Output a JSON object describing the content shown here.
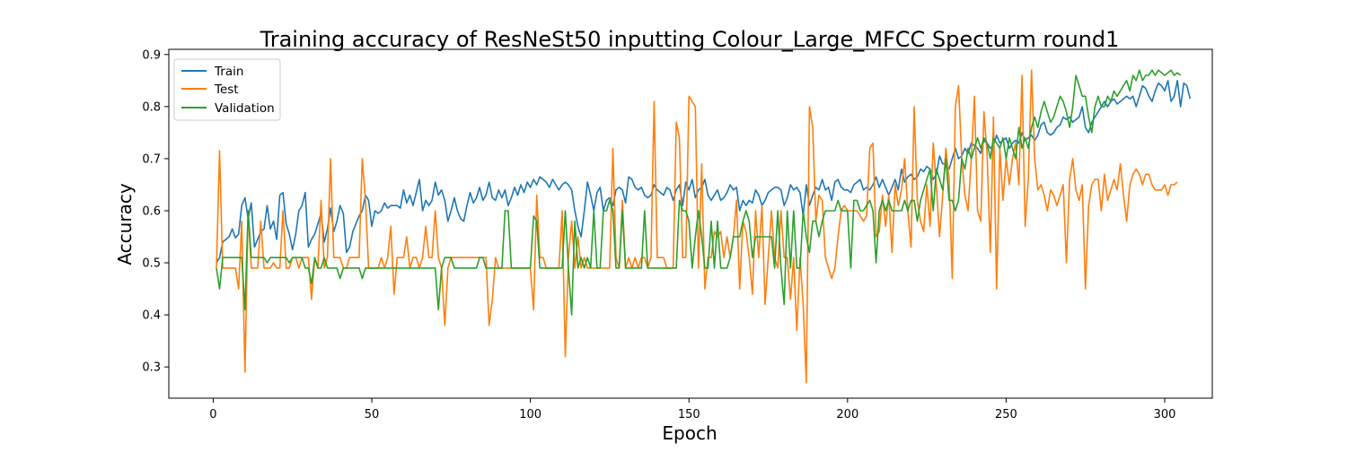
{
  "chart_data": {
    "type": "line",
    "title": "Training accuracy of ResNeSt50 inputting Colour_Large_MFCC Specturm round1",
    "xlabel": "Epoch",
    "ylabel": "Accuracy",
    "xlim": [
      -14,
      315
    ],
    "ylim": [
      0.24,
      0.91
    ],
    "xticks": [
      0,
      50,
      100,
      150,
      200,
      250,
      300
    ],
    "yticks": [
      0.3,
      0.4,
      0.5,
      0.6,
      0.7,
      0.8,
      0.9
    ],
    "legend_position": "top-left",
    "grid": false,
    "x_start": 1,
    "series": [
      {
        "name": "Train",
        "color": "#1f77b4",
        "values": [
          0.5,
          0.51,
          0.54,
          0.545,
          0.55,
          0.565,
          0.548,
          0.555,
          0.61,
          0.625,
          0.585,
          0.615,
          0.53,
          0.545,
          0.56,
          0.565,
          0.61,
          0.565,
          0.58,
          0.545,
          0.63,
          0.635,
          0.575,
          0.555,
          0.525,
          0.555,
          0.6,
          0.61,
          0.635,
          0.53,
          0.545,
          0.555,
          0.575,
          0.595,
          0.54,
          0.565,
          0.605,
          0.56,
          0.58,
          0.61,
          0.595,
          0.52,
          0.53,
          0.56,
          0.575,
          0.59,
          0.6,
          0.63,
          0.62,
          0.57,
          0.6,
          0.595,
          0.6,
          0.615,
          0.605,
          0.61,
          0.61,
          0.61,
          0.605,
          0.64,
          0.615,
          0.63,
          0.61,
          0.635,
          0.66,
          0.6,
          0.62,
          0.61,
          0.62,
          0.655,
          0.63,
          0.64,
          0.62,
          0.58,
          0.6,
          0.625,
          0.6,
          0.585,
          0.58,
          0.61,
          0.635,
          0.615,
          0.625,
          0.645,
          0.62,
          0.63,
          0.655,
          0.625,
          0.62,
          0.64,
          0.625,
          0.64,
          0.61,
          0.625,
          0.645,
          0.63,
          0.65,
          0.635,
          0.655,
          0.645,
          0.66,
          0.65,
          0.665,
          0.66,
          0.655,
          0.645,
          0.66,
          0.65,
          0.64,
          0.65,
          0.655,
          0.65,
          0.64,
          0.6,
          0.57,
          0.55,
          0.6,
          0.655,
          0.63,
          0.6,
          0.635,
          0.645,
          0.6,
          0.62,
          0.625,
          0.61,
          0.64,
          0.645,
          0.64,
          0.615,
          0.665,
          0.66,
          0.645,
          0.64,
          0.645,
          0.63,
          0.625,
          0.63,
          0.65,
          0.64,
          0.635,
          0.63,
          0.645,
          0.64,
          0.62,
          0.64,
          0.65,
          0.61,
          0.655,
          0.64,
          0.66,
          0.625,
          0.64,
          0.645,
          0.66,
          0.63,
          0.62,
          0.63,
          0.64,
          0.62,
          0.625,
          0.635,
          0.65,
          0.64,
          0.645,
          0.6,
          0.62,
          0.61,
          0.62,
          0.615,
          0.64,
          0.63,
          0.61,
          0.62,
          0.635,
          0.64,
          0.645,
          0.645,
          0.64,
          0.61,
          0.625,
          0.65,
          0.64,
          0.645,
          0.635,
          0.59,
          0.65,
          0.61,
          0.63,
          0.645,
          0.64,
          0.66,
          0.64,
          0.645,
          0.62,
          0.655,
          0.66,
          0.645,
          0.64,
          0.64,
          0.635,
          0.65,
          0.655,
          0.66,
          0.64,
          0.645,
          0.64,
          0.65,
          0.665,
          0.645,
          0.66,
          0.645,
          0.63,
          0.645,
          0.66,
          0.64,
          0.68,
          0.655,
          0.665,
          0.67,
          0.66,
          0.665,
          0.68,
          0.675,
          0.685,
          0.68,
          0.66,
          0.67,
          0.705,
          0.69,
          0.69,
          0.68,
          0.7,
          0.72,
          0.7,
          0.705,
          0.72,
          0.71,
          0.73,
          0.725,
          0.72,
          0.71,
          0.735,
          0.73,
          0.72,
          0.725,
          0.745,
          0.73,
          0.735,
          0.74,
          0.72,
          0.73,
          0.735,
          0.73,
          0.75,
          0.735,
          0.74,
          0.745,
          0.735,
          0.745,
          0.765,
          0.77,
          0.75,
          0.745,
          0.75,
          0.76,
          0.765,
          0.78,
          0.775,
          0.78,
          0.77,
          0.775,
          0.78,
          0.8,
          0.76,
          0.75,
          0.77,
          0.78,
          0.79,
          0.8,
          0.81,
          0.8,
          0.81,
          0.815,
          0.805,
          0.81,
          0.815,
          0.82,
          0.815,
          0.82,
          0.8,
          0.82,
          0.84,
          0.835,
          0.82,
          0.81,
          0.83,
          0.845,
          0.84,
          0.83,
          0.85,
          0.81,
          0.82,
          0.85,
          0.8,
          0.845,
          0.84,
          0.815
        ]
      },
      {
        "name": "Test",
        "color": "#ff7f0e",
        "values": [
          0.49,
          0.715,
          0.49,
          0.49,
          0.49,
          0.49,
          0.49,
          0.45,
          0.58,
          0.29,
          0.6,
          0.49,
          0.49,
          0.49,
          0.58,
          0.49,
          0.49,
          0.49,
          0.5,
          0.49,
          0.49,
          0.6,
          0.49,
          0.49,
          0.51,
          0.51,
          0.49,
          0.51,
          0.51,
          0.51,
          0.43,
          0.51,
          0.49,
          0.62,
          0.49,
          0.51,
          0.7,
          0.51,
          0.51,
          0.51,
          0.49,
          0.49,
          0.51,
          0.51,
          0.51,
          0.51,
          0.7,
          0.62,
          0.49,
          0.49,
          0.49,
          0.49,
          0.51,
          0.49,
          0.51,
          0.57,
          0.44,
          0.51,
          0.51,
          0.51,
          0.55,
          0.49,
          0.51,
          0.51,
          0.49,
          0.51,
          0.57,
          0.51,
          0.51,
          0.6,
          0.51,
          0.49,
          0.38,
          0.49,
          0.51,
          0.51,
          0.51,
          0.51,
          0.51,
          0.51,
          0.51,
          0.51,
          0.51,
          0.51,
          0.51,
          0.51,
          0.38,
          0.43,
          0.51,
          0.49,
          0.49,
          0.49,
          0.49,
          0.49,
          0.49,
          0.49,
          0.49,
          0.49,
          0.49,
          0.49,
          0.41,
          0.63,
          0.51,
          0.51,
          0.49,
          0.49,
          0.49,
          0.49,
          0.49,
          0.6,
          0.32,
          0.51,
          0.58,
          0.49,
          0.55,
          0.49,
          0.51,
          0.49,
          0.49,
          0.49,
          0.49,
          0.49,
          0.49,
          0.49,
          0.49,
          0.72,
          0.51,
          0.49,
          0.62,
          0.49,
          0.51,
          0.49,
          0.51,
          0.49,
          0.51,
          0.51,
          0.49,
          0.51,
          0.81,
          0.51,
          0.51,
          0.51,
          0.49,
          0.49,
          0.49,
          0.77,
          0.74,
          0.51,
          0.51,
          0.82,
          0.81,
          0.8,
          0.49,
          0.69,
          0.45,
          0.51,
          0.51,
          0.56,
          0.55,
          0.56,
          0.51,
          0.55,
          0.51,
          0.55,
          0.62,
          0.45,
          0.58,
          0.56,
          0.51,
          0.44,
          0.6,
          0.51,
          0.61,
          0.42,
          0.51,
          0.6,
          0.51,
          0.49,
          0.6,
          0.51,
          0.51,
          0.43,
          0.51,
          0.37,
          0.51,
          0.42,
          0.27,
          0.8,
          0.76,
          0.58,
          0.63,
          0.62,
          0.51,
          0.49,
          0.47,
          0.49,
          0.55,
          0.6,
          0.61,
          0.6,
          0.6,
          0.6,
          0.6,
          0.59,
          0.58,
          0.59,
          0.72,
          0.73,
          0.55,
          0.56,
          0.63,
          0.57,
          0.63,
          0.52,
          0.65,
          0.61,
          0.64,
          0.7,
          0.6,
          0.53,
          0.8,
          0.62,
          0.58,
          0.56,
          0.65,
          0.57,
          0.73,
          0.65,
          0.55,
          0.63,
          0.72,
          0.66,
          0.47,
          0.8,
          0.84,
          0.7,
          0.63,
          0.6,
          0.7,
          0.82,
          0.6,
          0.58,
          0.79,
          0.71,
          0.52,
          0.78,
          0.45,
          0.72,
          0.62,
          0.7,
          0.65,
          0.7,
          0.73,
          0.65,
          0.86,
          0.57,
          0.66,
          0.87,
          0.7,
          0.64,
          0.65,
          0.63,
          0.6,
          0.64,
          0.63,
          0.61,
          0.63,
          0.65,
          0.5,
          0.66,
          0.7,
          0.64,
          0.62,
          0.65,
          0.45,
          0.61,
          0.65,
          0.66,
          0.66,
          0.6,
          0.67,
          0.62,
          0.64,
          0.66,
          0.64,
          0.69,
          0.63,
          0.58,
          0.65,
          0.67,
          0.68,
          0.67,
          0.65,
          0.67,
          0.67,
          0.65,
          0.64,
          0.64,
          0.64,
          0.65,
          0.63,
          0.65,
          0.65,
          0.655
        ]
      },
      {
        "name": "Validation",
        "color": "#2ca02c",
        "values": [
          0.49,
          0.45,
          0.51,
          0.51,
          0.51,
          0.51,
          0.51,
          0.51,
          0.51,
          0.41,
          0.6,
          0.51,
          0.51,
          0.51,
          0.51,
          0.51,
          0.5,
          0.51,
          0.51,
          0.51,
          0.51,
          0.51,
          0.51,
          0.5,
          0.51,
          0.51,
          0.51,
          0.51,
          0.49,
          0.49,
          0.46,
          0.51,
          0.49,
          0.49,
          0.51,
          0.49,
          0.49,
          0.49,
          0.49,
          0.47,
          0.49,
          0.49,
          0.49,
          0.49,
          0.49,
          0.49,
          0.47,
          0.49,
          0.49,
          0.49,
          0.49,
          0.49,
          0.49,
          0.49,
          0.49,
          0.49,
          0.49,
          0.49,
          0.49,
          0.49,
          0.49,
          0.49,
          0.49,
          0.49,
          0.49,
          0.49,
          0.49,
          0.49,
          0.49,
          0.49,
          0.41,
          0.49,
          0.51,
          0.51,
          0.51,
          0.49,
          0.49,
          0.49,
          0.49,
          0.49,
          0.49,
          0.49,
          0.49,
          0.51,
          0.51,
          0.49,
          0.49,
          0.49,
          0.49,
          0.49,
          0.49,
          0.6,
          0.6,
          0.49,
          0.49,
          0.49,
          0.49,
          0.49,
          0.49,
          0.49,
          0.59,
          0.58,
          0.49,
          0.49,
          0.49,
          0.49,
          0.49,
          0.49,
          0.49,
          0.49,
          0.6,
          0.49,
          0.4,
          0.58,
          0.49,
          0.51,
          0.49,
          0.51,
          0.49,
          0.6,
          0.49,
          0.49,
          0.6,
          0.6,
          0.62,
          0.6,
          0.49,
          0.49,
          0.6,
          0.49,
          0.49,
          0.49,
          0.49,
          0.49,
          0.49,
          0.6,
          0.49,
          0.49,
          0.49,
          0.49,
          0.49,
          0.49,
          0.49,
          0.49,
          0.49,
          0.49,
          0.62,
          0.6,
          0.6,
          0.58,
          0.49,
          0.55,
          0.6,
          0.55,
          0.49,
          0.49,
          0.58,
          0.49,
          0.58,
          0.49,
          0.49,
          0.49,
          0.51,
          0.55,
          0.55,
          0.55,
          0.58,
          0.6,
          0.58,
          0.51,
          0.55,
          0.55,
          0.55,
          0.55,
          0.55,
          0.55,
          0.49,
          0.6,
          0.49,
          0.42,
          0.6,
          0.49,
          0.6,
          0.49,
          0.49,
          0.6,
          0.55,
          0.52,
          0.58,
          0.58,
          0.55,
          0.58,
          0.6,
          0.6,
          0.6,
          0.6,
          0.62,
          0.6,
          0.6,
          0.6,
          0.49,
          0.62,
          0.62,
          0.6,
          0.6,
          0.61,
          0.62,
          0.6,
          0.5,
          0.6,
          0.62,
          0.6,
          0.62,
          0.6,
          0.6,
          0.6,
          0.6,
          0.62,
          0.6,
          0.62,
          0.62,
          0.58,
          0.62,
          0.64,
          0.66,
          0.68,
          0.6,
          0.68,
          0.66,
          0.64,
          0.7,
          0.62,
          0.62,
          0.6,
          0.62,
          0.7,
          0.68,
          0.72,
          0.7,
          0.72,
          0.74,
          0.72,
          0.74,
          0.73,
          0.7,
          0.74,
          0.73,
          0.72,
          0.74,
          0.7,
          0.74,
          0.72,
          0.7,
          0.76,
          0.72,
          0.74,
          0.72,
          0.76,
          0.78,
          0.76,
          0.79,
          0.81,
          0.79,
          0.77,
          0.78,
          0.8,
          0.82,
          0.81,
          0.79,
          0.76,
          0.8,
          0.86,
          0.84,
          0.82,
          0.82,
          0.78,
          0.75,
          0.8,
          0.82,
          0.8,
          0.8,
          0.82,
          0.81,
          0.83,
          0.82,
          0.83,
          0.84,
          0.85,
          0.83,
          0.86,
          0.85,
          0.87,
          0.85,
          0.86,
          0.86,
          0.87,
          0.86,
          0.87,
          0.865,
          0.86,
          0.865,
          0.87,
          0.86,
          0.865,
          0.86
        ]
      }
    ]
  }
}
